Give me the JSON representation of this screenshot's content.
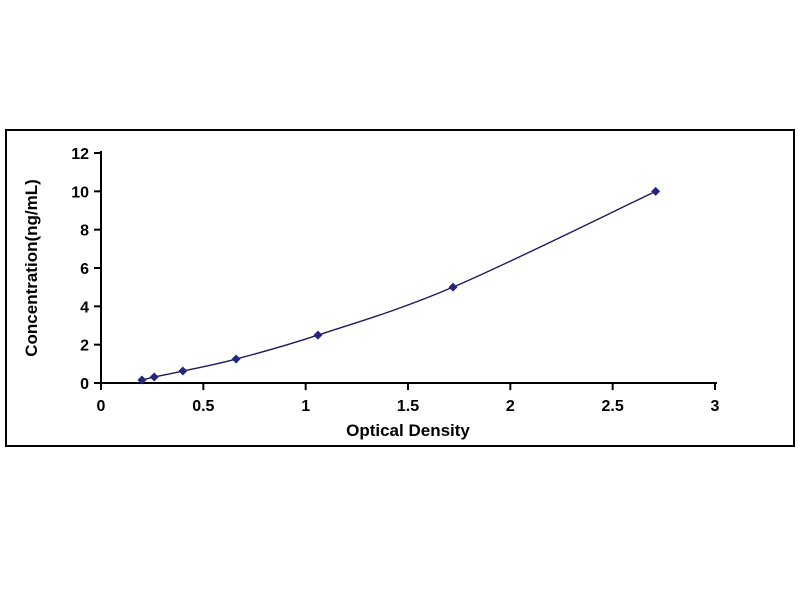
{
  "chart_data": {
    "type": "line",
    "title": "",
    "xlabel": "Optical Density",
    "ylabel": "Concentration(ng/mL)",
    "x": [
      0.2,
      0.26,
      0.4,
      0.66,
      1.06,
      1.72,
      2.71
    ],
    "y": [
      0.156,
      0.312,
      0.625,
      1.25,
      2.5,
      5.0,
      10.0
    ],
    "xlim": [
      0,
      3
    ],
    "ylim": [
      0,
      12
    ],
    "xticks": [
      0,
      0.5,
      1,
      1.5,
      2,
      2.5,
      3
    ],
    "yticks": [
      0,
      2,
      4,
      6,
      8,
      10,
      12
    ],
    "grid": false,
    "legend": false,
    "marker": "diamond",
    "colors": {
      "line": "#1b1b5e",
      "marker": "#22277d",
      "axis": "#000000",
      "text": "#000000",
      "frame_border": "#000000",
      "background": "#ffffff"
    }
  }
}
